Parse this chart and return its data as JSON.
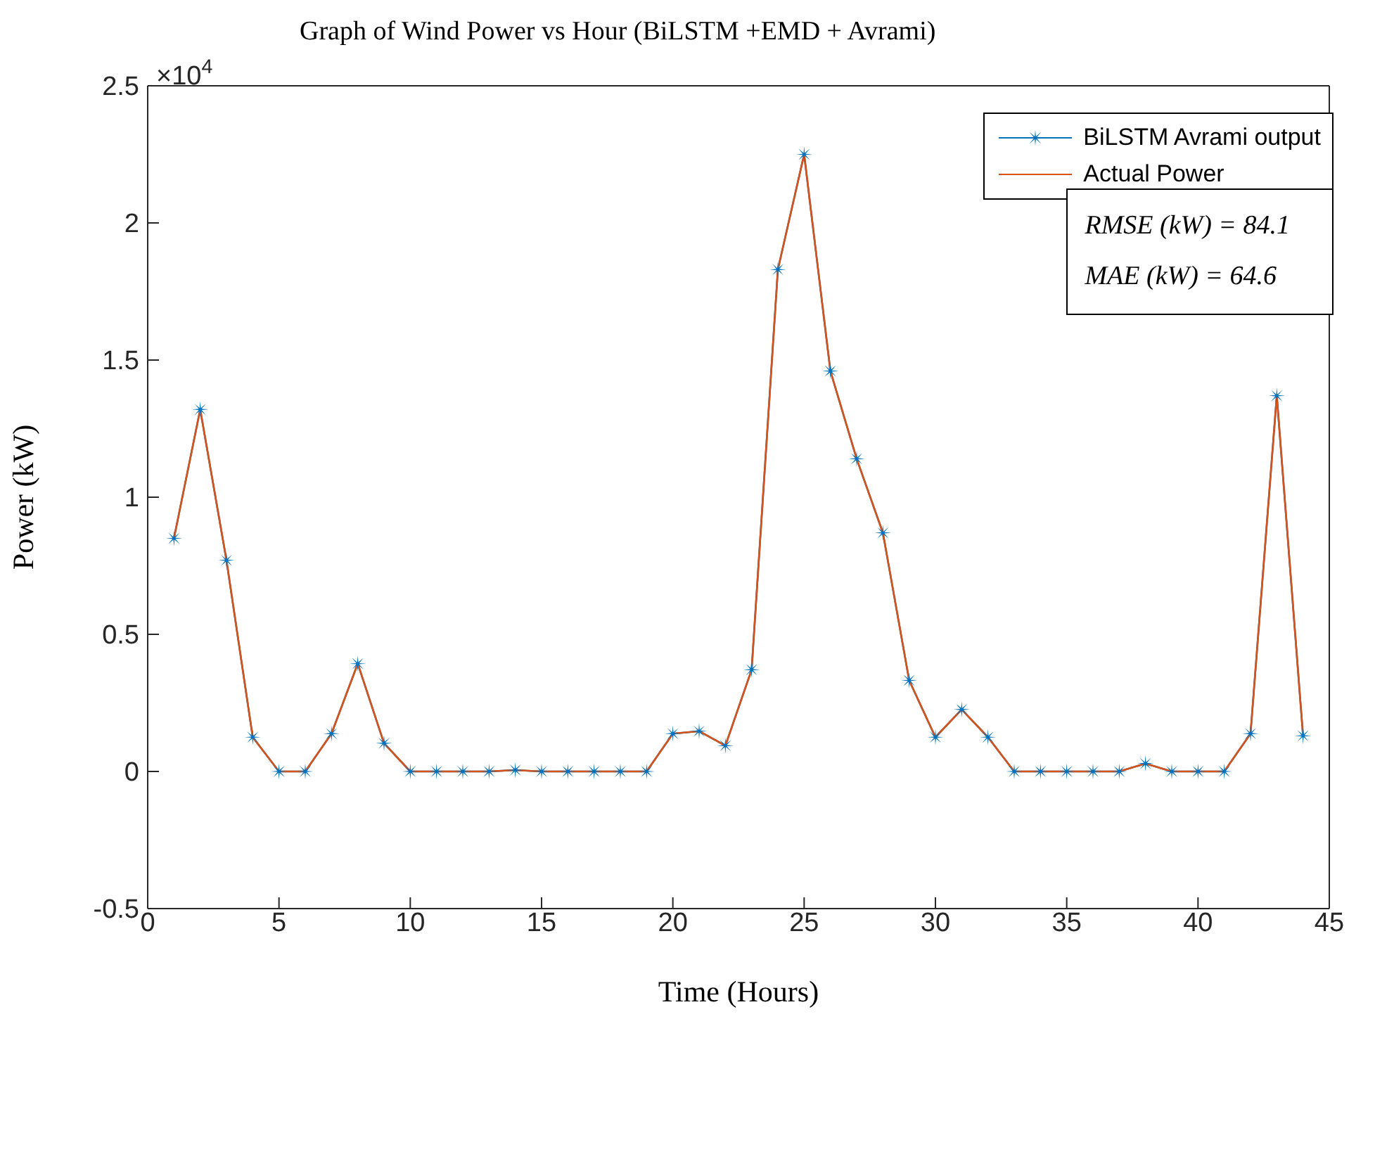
{
  "chart_data": {
    "type": "line",
    "title": "Graph of Wind Power vs Hour (BiLSTM +EMD + Avrami)",
    "xlabel": "Time (Hours)",
    "ylabel": "Power (kW)",
    "x": [
      1,
      2,
      3,
      4,
      5,
      6,
      7,
      8,
      9,
      10,
      11,
      12,
      13,
      14,
      15,
      16,
      17,
      18,
      19,
      20,
      21,
      22,
      23,
      24,
      25,
      26,
      27,
      28,
      29,
      30,
      31,
      32,
      33,
      34,
      35,
      36,
      37,
      38,
      39,
      40,
      41,
      42,
      43,
      44
    ],
    "series": [
      {
        "name": "BiLSTM Avrami output",
        "color": "#0072bd",
        "marker": "star",
        "values": [
          0.85,
          1.32,
          0.77,
          0.125,
          0,
          0,
          0.138,
          0.393,
          0.103,
          0,
          0,
          0,
          0,
          0.005,
          0,
          0,
          0,
          0,
          0,
          0.138,
          0.147,
          0.094,
          0.371,
          1.83,
          2.25,
          1.46,
          1.14,
          0.87,
          0.332,
          0.125,
          0.226,
          0.125,
          0,
          0,
          0,
          0,
          0,
          0.029,
          0,
          0,
          0,
          0.138,
          1.37,
          0.13
        ]
      },
      {
        "name": "Actual Power",
        "color": "#d95319",
        "marker": "none",
        "values": [
          0.85,
          1.32,
          0.77,
          0.125,
          0,
          0,
          0.138,
          0.393,
          0.103,
          0,
          0,
          0,
          0,
          0.005,
          0,
          0,
          0,
          0,
          0,
          0.138,
          0.147,
          0.094,
          0.371,
          1.83,
          2.25,
          1.46,
          1.14,
          0.87,
          0.332,
          0.125,
          0.226,
          0.125,
          0,
          0,
          0,
          0,
          0,
          0.029,
          0,
          0,
          0,
          0.138,
          1.37,
          0.13
        ]
      }
    ],
    "xlim": [
      0,
      45
    ],
    "xticks": [
      0,
      5,
      10,
      15,
      20,
      25,
      30,
      35,
      40,
      45
    ],
    "ylim": [
      -0.5,
      2.5
    ],
    "yticks": [
      -0.5,
      0,
      0.5,
      1,
      1.5,
      2,
      2.5
    ],
    "annotations": [
      "×10$^{4}$",
      "RMSE (kW) =  84.1",
      "MAE (kW) = 64.6"
    ],
    "legend": "top right",
    "grid": false,
    "line_style": "solid"
  }
}
